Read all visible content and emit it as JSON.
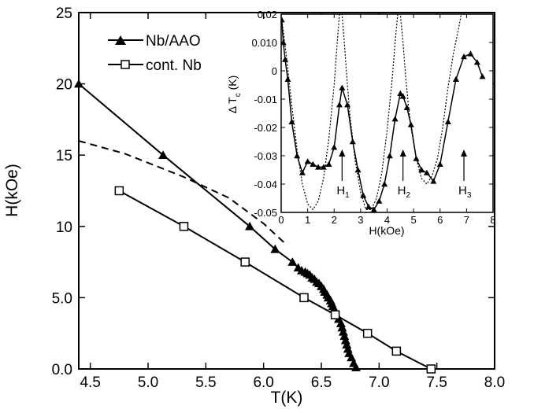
{
  "chart_data": [
    {
      "type": "line",
      "xlabel": "T(K)",
      "ylabel": "H(kOe)",
      "xlim": [
        4.4,
        8.0
      ],
      "ylim": [
        0,
        25
      ],
      "xticks": [
        "4.5",
        "5.0",
        "5.5",
        "6.0",
        "6.5",
        "7.0",
        "7.5",
        "8.0"
      ],
      "xtick_values": [
        4.5,
        5.0,
        5.5,
        6.0,
        6.5,
        7.0,
        7.5,
        8.0
      ],
      "yticks": [
        "0.0",
        "5.0",
        "10",
        "15",
        "20",
        "25"
      ],
      "ytick_values": [
        0,
        5,
        10,
        15,
        20,
        25
      ],
      "legend_position": "top-left",
      "series": [
        {
          "name": "Nb/AAO",
          "marker": "filled-triangle",
          "line": "solid",
          "x": [
            4.4,
            5.13,
            5.88,
            6.1,
            6.25,
            6.3,
            6.33,
            6.36,
            6.38,
            6.4,
            6.42,
            6.44,
            6.46,
            6.48,
            6.5,
            6.52,
            6.53,
            6.55,
            6.56,
            6.58,
            6.59,
            6.6,
            6.61,
            6.62,
            6.63,
            6.65,
            6.67,
            6.68,
            6.69,
            6.7,
            6.71,
            6.72,
            6.73,
            6.74,
            6.76,
            6.78,
            6.8
          ],
          "y": [
            20.0,
            15.0,
            10.0,
            8.4,
            7.5,
            7.1,
            6.9,
            6.8,
            6.7,
            6.6,
            6.4,
            6.3,
            6.1,
            6.0,
            5.8,
            5.6,
            5.4,
            5.2,
            5.0,
            4.8,
            4.6,
            4.4,
            4.2,
            4.0,
            3.8,
            3.5,
            3.2,
            2.9,
            2.6,
            2.3,
            2.0,
            1.7,
            1.4,
            1.1,
            0.8,
            0.4,
            0.1
          ]
        },
        {
          "name": "cont. Nb",
          "marker": "open-square",
          "line": "solid",
          "x": [
            4.75,
            5.31,
            5.84,
            6.35,
            6.62,
            6.9,
            7.15,
            7.45
          ],
          "y": [
            12.5,
            10.0,
            7.5,
            5.0,
            3.8,
            2.5,
            1.25,
            0.0
          ]
        },
        {
          "line": "dashed",
          "marker": "none",
          "x": [
            4.4,
            4.8,
            5.3,
            5.7,
            6.0,
            6.2
          ],
          "y": [
            16.0,
            15.1,
            13.5,
            12.0,
            10.2,
            8.7
          ]
        }
      ]
    },
    {
      "type": "line",
      "xlabel": "H(kOe)",
      "ylabel": "Δ T_c (K)",
      "xlim": [
        0,
        8
      ],
      "ylim": [
        -0.05,
        0.02
      ],
      "xticks": [
        "0",
        "1",
        "2",
        "3",
        "4",
        "5",
        "6",
        "7",
        "8"
      ],
      "xtick_values": [
        0,
        1,
        2,
        3,
        4,
        5,
        6,
        7,
        8
      ],
      "yticks": [
        "0.02",
        "0.010",
        "0",
        "-0.01",
        "-0.02",
        "-0.03",
        "-0.04",
        "-0.05"
      ],
      "ytick_values": [
        0.02,
        0.01,
        0,
        -0.01,
        -0.02,
        -0.03,
        -0.04,
        -0.05
      ],
      "annotations": [
        {
          "label": "H",
          "sub": "1",
          "x": 2.3
        },
        {
          "label": "H",
          "sub": "2",
          "x": 4.6
        },
        {
          "label": "H",
          "sub": "3",
          "x": 6.9
        }
      ],
      "series": [
        {
          "marker": "filled-triangle",
          "line": "solid",
          "x": [
            0.02,
            0.08,
            0.15,
            0.25,
            0.4,
            0.6,
            0.8,
            1.0,
            1.2,
            1.4,
            1.6,
            1.8,
            2.0,
            2.2,
            2.3,
            2.5,
            2.7,
            2.9,
            3.1,
            3.3,
            3.5,
            3.7,
            3.9,
            4.1,
            4.3,
            4.5,
            4.6,
            4.75,
            4.9,
            5.1,
            5.3,
            5.5,
            5.75,
            6.0,
            6.3,
            6.6,
            6.9,
            7.15,
            7.4,
            7.6
          ],
          "y": [
            0.018,
            0.01,
            0.004,
            -0.003,
            -0.018,
            -0.03,
            -0.036,
            -0.032,
            -0.033,
            -0.034,
            -0.034,
            -0.033,
            -0.027,
            -0.012,
            -0.006,
            -0.012,
            -0.025,
            -0.035,
            -0.044,
            -0.048,
            -0.049,
            -0.046,
            -0.04,
            -0.03,
            -0.017,
            -0.008,
            -0.009,
            -0.013,
            -0.019,
            -0.031,
            -0.035,
            -0.036,
            -0.039,
            -0.033,
            -0.018,
            -0.003,
            0.005,
            0.006,
            0.003,
            -0.002
          ]
        },
        {
          "line": "dotted",
          "marker": "none",
          "x": [
            0.0,
            0.2,
            0.4,
            0.6,
            0.8,
            1.0,
            1.2,
            1.4,
            1.6,
            1.8,
            2.0,
            2.1,
            2.2,
            2.3,
            2.4,
            2.5,
            2.6,
            2.7,
            2.8,
            3.0,
            3.2,
            3.4,
            3.6,
            3.8,
            4.0,
            4.2,
            4.3,
            4.4,
            4.5,
            4.6,
            4.7,
            4.8,
            4.9,
            5.1,
            5.3,
            5.5,
            5.7,
            5.9,
            6.1,
            6.3,
            6.5,
            6.7,
            6.8,
            6.9
          ],
          "y": [
            0.02,
            0.005,
            -0.012,
            -0.028,
            -0.04,
            -0.047,
            -0.049,
            -0.046,
            -0.038,
            -0.024,
            -0.005,
            0.008,
            0.02,
            0.02,
            0.008,
            -0.005,
            -0.016,
            -0.024,
            -0.032,
            -0.043,
            -0.049,
            -0.049,
            -0.045,
            -0.036,
            -0.021,
            -0.002,
            0.01,
            0.02,
            0.02,
            0.01,
            -0.002,
            -0.012,
            -0.02,
            -0.031,
            -0.038,
            -0.04,
            -0.037,
            -0.031,
            -0.02,
            -0.006,
            0.006,
            0.015,
            0.02,
            0.02
          ]
        }
      ]
    }
  ]
}
